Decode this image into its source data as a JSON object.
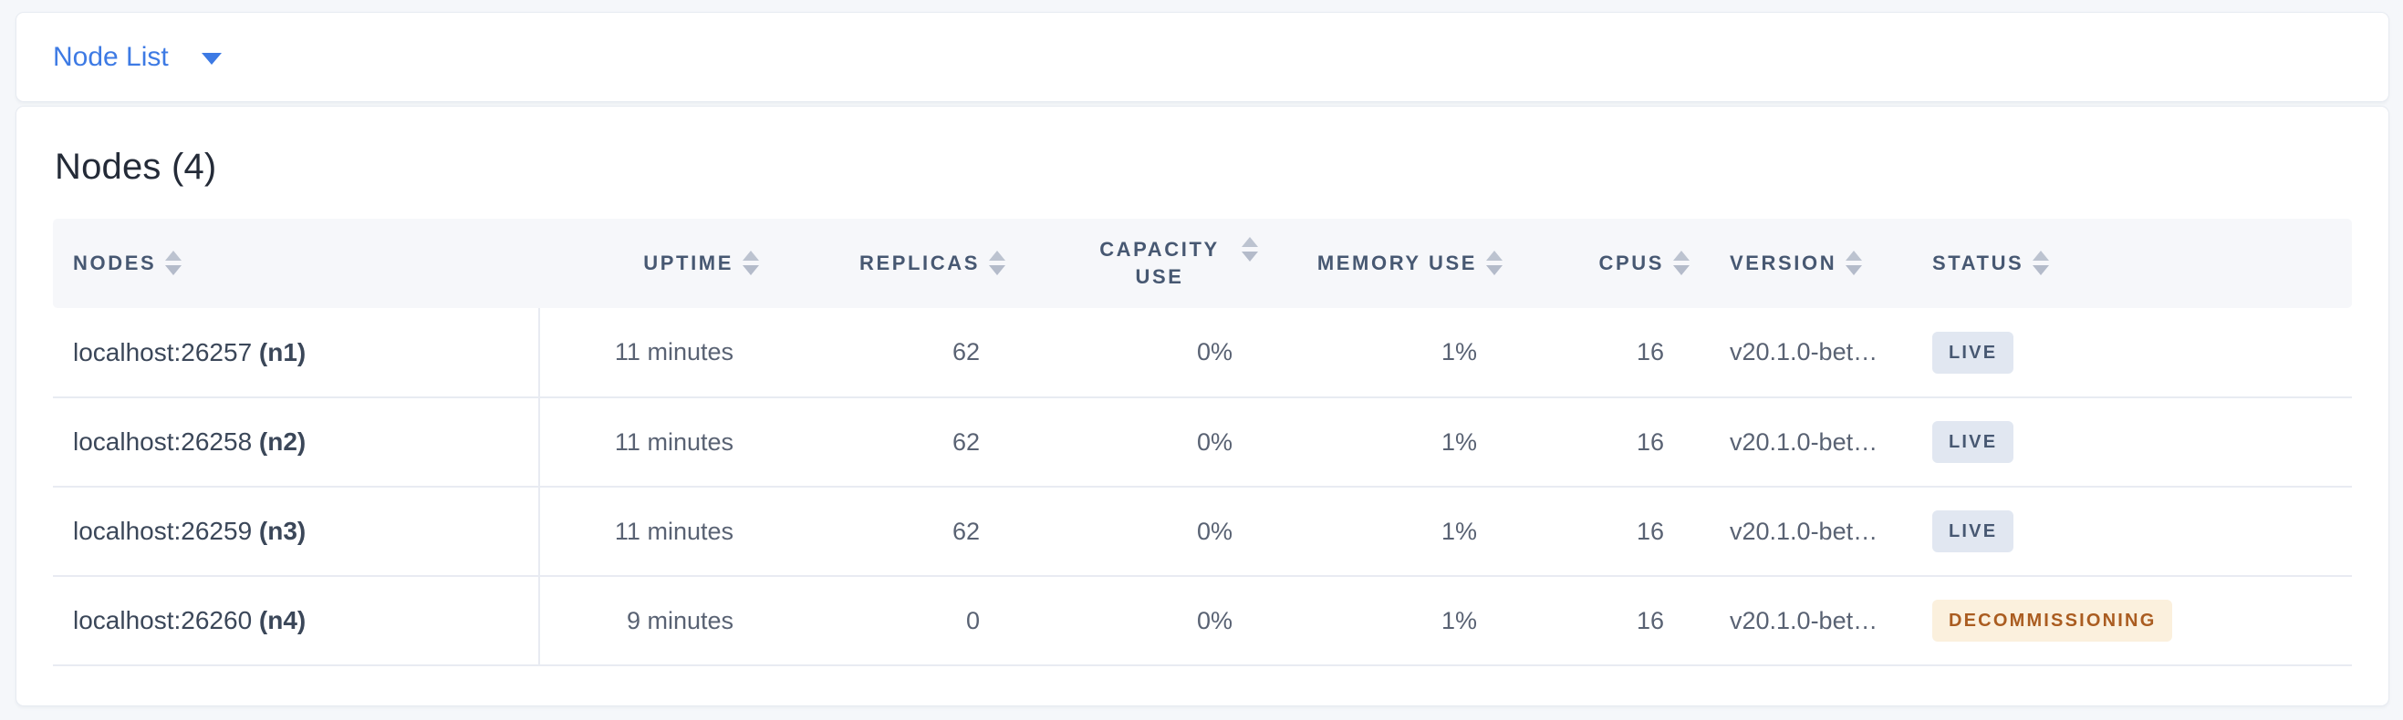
{
  "view_selector": {
    "label": "Node List"
  },
  "panel": {
    "title": "Nodes (4)"
  },
  "table": {
    "columns": [
      {
        "key": "nodes",
        "label": "NODES",
        "align": "left"
      },
      {
        "key": "uptime",
        "label": "UPTIME",
        "align": "right"
      },
      {
        "key": "replicas",
        "label": "REPLICAS",
        "align": "right"
      },
      {
        "key": "capacity",
        "label": "CAPACITY USE",
        "align": "right"
      },
      {
        "key": "memory",
        "label": "MEMORY USE",
        "align": "right"
      },
      {
        "key": "cpus",
        "label": "CPUS",
        "align": "right"
      },
      {
        "key": "version",
        "label": "VERSION",
        "align": "left"
      },
      {
        "key": "status",
        "label": "STATUS",
        "align": "left"
      }
    ],
    "rows": [
      {
        "address": "localhost:26257",
        "node_id": "(n1)",
        "uptime": "11 minutes",
        "replicas": "62",
        "capacity": "0%",
        "memory": "1%",
        "cpus": "16",
        "version": "v20.1.0-bet…",
        "status": "LIVE",
        "status_type": "live"
      },
      {
        "address": "localhost:26258",
        "node_id": "(n2)",
        "uptime": "11 minutes",
        "replicas": "62",
        "capacity": "0%",
        "memory": "1%",
        "cpus": "16",
        "version": "v20.1.0-bet…",
        "status": "LIVE",
        "status_type": "live"
      },
      {
        "address": "localhost:26259",
        "node_id": "(n3)",
        "uptime": "11 minutes",
        "replicas": "62",
        "capacity": "0%",
        "memory": "1%",
        "cpus": "16",
        "version": "v20.1.0-bet…",
        "status": "LIVE",
        "status_type": "live"
      },
      {
        "address": "localhost:26260",
        "node_id": "(n4)",
        "uptime": "9 minutes",
        "replicas": "0",
        "capacity": "0%",
        "memory": "1%",
        "cpus": "16",
        "version": "v20.1.0-bet…",
        "status": "DECOMMISSIONING",
        "status_type": "decommissioning"
      }
    ]
  },
  "colors": {
    "accent_blue": "#3d7ae4",
    "status": {
      "live": {
        "bg": "#e1e7f1",
        "text": "#475872"
      },
      "decommissioning": {
        "bg": "#fbf0dd",
        "text": "#aa5c20"
      }
    }
  }
}
